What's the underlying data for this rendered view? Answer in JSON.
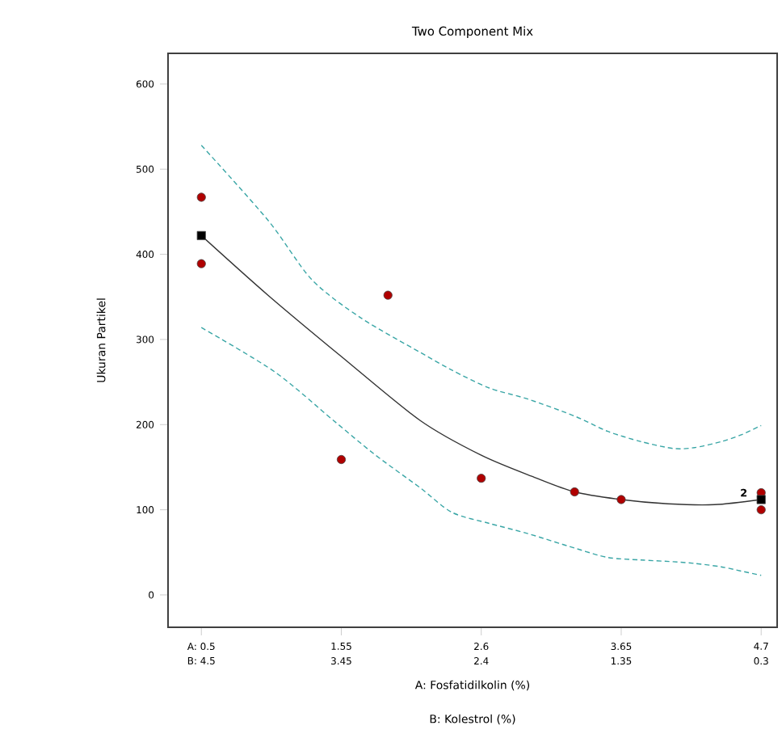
{
  "chart_data": {
    "type": "scatter",
    "title": "Two Component Mix",
    "xlabel": "A: Fosfatidilkolin (%)",
    "x2label": "B: Kolestrol (%)",
    "ylabel": "Ukuran Partikel",
    "xlim": [
      0.25,
      4.82
    ],
    "xticks": [
      {
        "value": 0.5,
        "label": "A: 0.5"
      },
      1.55,
      2.6,
      3.65,
      4.7
    ],
    "x2lim": [
      4.75,
      0.18
    ],
    "x2ticks": [
      {
        "value": 4.5,
        "label": "B: 4.5"
      },
      3.45,
      2.4,
      1.35,
      0.3
    ],
    "ylim": [
      -38,
      636
    ],
    "yticks": [
      0,
      100,
      200,
      300,
      400,
      500,
      600
    ],
    "grid": false,
    "series": [
      {
        "type": "line",
        "color": "#3aa6a6",
        "line_style": "dashed",
        "marker": "none",
        "x": [
          0.5,
          1.0,
          1.33,
          1.7,
          2.14,
          2.38,
          2.66,
          2.95,
          3.3,
          3.55,
          3.8,
          4.04,
          4.2,
          4.4,
          4.55,
          4.7
        ],
        "values": [
          528,
          440,
          370,
          325,
          285,
          264,
          243,
          230,
          210,
          192,
          180,
          172,
          173,
          180,
          188,
          199
        ]
      },
      {
        "type": "line",
        "color": "#3aa6a6",
        "line_style": "dashed",
        "marker": "none",
        "x": [
          0.5,
          1.05,
          1.49,
          1.8,
          2.14,
          2.38,
          2.66,
          2.95,
          3.3,
          3.55,
          3.8,
          4.04,
          4.2,
          4.4,
          4.55,
          4.7
        ],
        "values": [
          314,
          262,
          205,
          165,
          126,
          97,
          84,
          72,
          55,
          44,
          41,
          39,
          37,
          33,
          28,
          23
        ]
      },
      {
        "type": "line",
        "color": "#333333",
        "line_style": "solid",
        "marker": "none",
        "x": [
          0.5,
          1.0,
          1.55,
          2.14,
          2.6,
          3.0,
          3.3,
          3.65,
          4.0,
          4.35,
          4.7
        ],
        "values": [
          422,
          352,
          280,
          205,
          164,
          138,
          121,
          112,
          107,
          106,
          112
        ]
      },
      {
        "color": "#b00000",
        "marker": "circle",
        "x": [
          0.5,
          0.5,
          1.9,
          1.55,
          2.6,
          3.3,
          3.65,
          4.7,
          4.7
        ],
        "values": [
          467,
          389,
          352,
          159,
          137,
          121,
          112,
          120,
          100
        ]
      },
      {
        "color": "#000000",
        "marker": "square",
        "x": [
          0.5,
          4.7
        ],
        "values": [
          422,
          112
        ]
      }
    ],
    "annotations": [
      {
        "text": "2",
        "x": 4.7,
        "y": 120
      }
    ]
  }
}
